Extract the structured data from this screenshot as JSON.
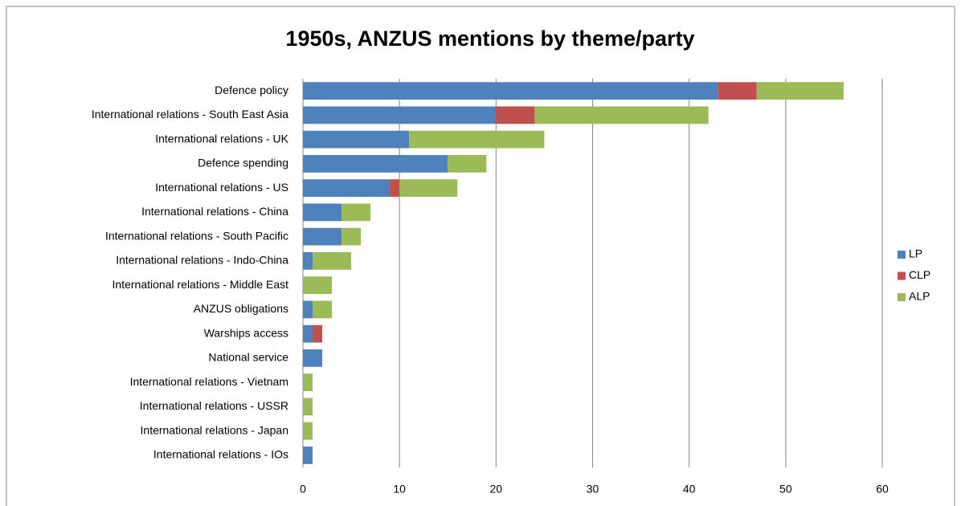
{
  "chart_data": {
    "type": "stacked_barh",
    "title": "1950s, ANZUS mentions by theme/party",
    "categories": [
      "Defence policy",
      "International relations - South East Asia",
      "International relations - UK",
      "Defence spending",
      "International relations - US",
      "International relations - China",
      "International relations - South Pacific",
      "International relations - Indo-China",
      "International relations - Middle East",
      "ANZUS obligations",
      "Warships access",
      "National service",
      "International relations - Vietnam",
      "International relations - USSR",
      "International relations - Japan",
      "International relations - IOs"
    ],
    "series": [
      {
        "name": "LP",
        "color": "#4f81bd",
        "values": [
          43,
          20,
          11,
          15,
          9,
          4,
          4,
          1,
          0,
          1,
          1,
          2,
          0,
          0,
          0,
          1
        ]
      },
      {
        "name": "CLP",
        "color": "#c0504d",
        "values": [
          4,
          4,
          0,
          0,
          1,
          0,
          0,
          0,
          0,
          0,
          1,
          0,
          0,
          0,
          0,
          0
        ]
      },
      {
        "name": "ALP",
        "color": "#9bbb59",
        "values": [
          9,
          18,
          14,
          4,
          6,
          3,
          2,
          4,
          3,
          2,
          0,
          0,
          1,
          1,
          1,
          0
        ]
      }
    ],
    "xlim": [
      0,
      60
    ],
    "xticks": [
      0,
      10,
      20,
      30,
      40,
      50,
      60
    ],
    "grid": true,
    "legend": "right"
  }
}
